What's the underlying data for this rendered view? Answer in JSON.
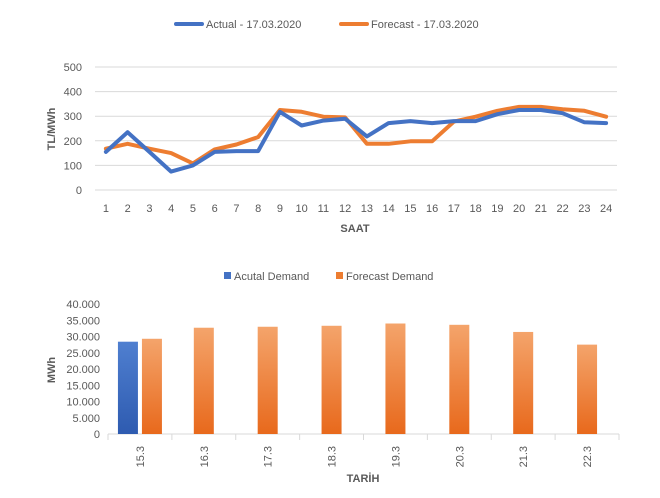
{
  "chart_data": [
    {
      "type": "line",
      "title": "",
      "xlabel": "SAAT",
      "ylabel": "TL/MWh",
      "ylim": [
        0,
        500
      ],
      "yticks": [
        "0",
        "100",
        "200",
        "300",
        "400",
        "500"
      ],
      "grid": true,
      "legend_position": "top",
      "x": [
        "1",
        "2",
        "3",
        "4",
        "5",
        "6",
        "7",
        "8",
        "9",
        "10",
        "11",
        "12",
        "13",
        "14",
        "15",
        "16",
        "17",
        "18",
        "19",
        "20",
        "21",
        "22",
        "23",
        "24"
      ],
      "series": [
        {
          "name": "Actual - 17.03.2020",
          "color": "#4472C4",
          "values": [
            155,
            235,
            155,
            75,
            100,
            155,
            158,
            158,
            318,
            262,
            282,
            290,
            218,
            272,
            280,
            272,
            280,
            280,
            308,
            325,
            325,
            312,
            275,
            272
          ]
        },
        {
          "name": "Forecast - 17.03.2020",
          "color": "#ED7D31",
          "values": [
            168,
            188,
            168,
            150,
            108,
            165,
            185,
            215,
            325,
            318,
            298,
            295,
            188,
            188,
            198,
            198,
            278,
            298,
            322,
            338,
            338,
            328,
            322,
            298
          ]
        }
      ]
    },
    {
      "type": "bar",
      "title": "",
      "xlabel": "TARİH",
      "ylabel": "MWh",
      "ylim": [
        0,
        40000
      ],
      "yticks": [
        "0",
        "5.000",
        "10.000",
        "15.000",
        "20.000",
        "25.000",
        "30.000",
        "35.000",
        "40.000"
      ],
      "grid": false,
      "legend_position": "top",
      "categories": [
        "15.3",
        "16.3",
        "17.3",
        "18.3",
        "19.3",
        "20.3",
        "21.3",
        "22.3"
      ],
      "series": [
        {
          "name": "Acutal Demand",
          "color": "#4472C4",
          "values": [
            28400,
            null,
            null,
            null,
            null,
            null,
            null,
            null
          ]
        },
        {
          "name": "Forecast Demand",
          "color": "#ED7D31",
          "values": [
            29300,
            32700,
            33000,
            33300,
            34000,
            33600,
            31400,
            27500
          ]
        }
      ]
    }
  ]
}
